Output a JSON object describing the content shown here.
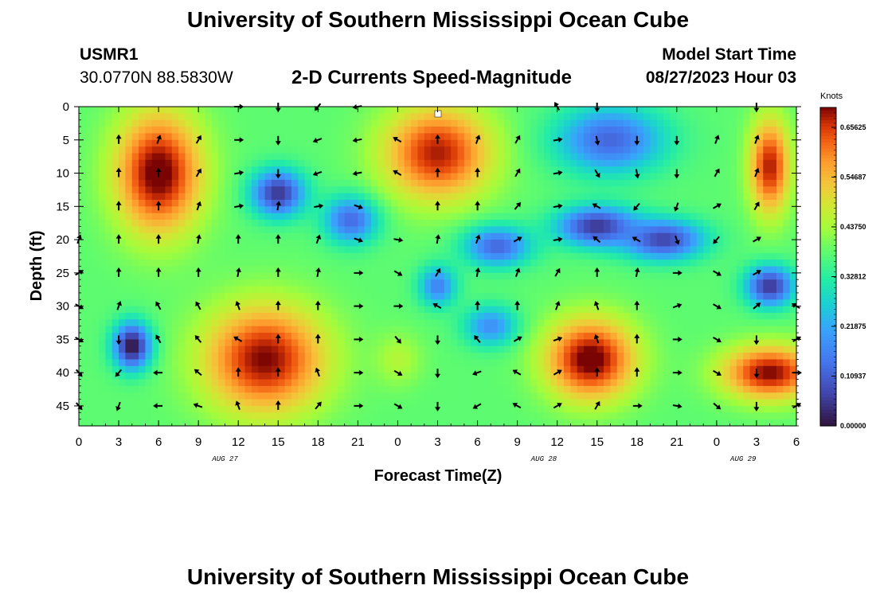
{
  "page_title": "University of Southern Mississippi Ocean Cube",
  "station": {
    "id": "USMR1",
    "coordinates": "30.0770N  88.5830W"
  },
  "subtitle": "2-D Currents Speed-Magnitude",
  "model_start": {
    "label": "Model Start Time",
    "value": "08/27/2023 Hour 03"
  },
  "bottom_title": "University of Southern Mississippi Ocean Cube",
  "chart_data": {
    "type": "heatmap",
    "title": "2-D Currents Speed-Magnitude",
    "xlabel": "Forecast Time(Z)",
    "ylabel": "Depth (ft)",
    "x_ticks": [
      "0",
      "3",
      "6",
      "9",
      "12",
      "15",
      "18",
      "21",
      "0",
      "3",
      "6",
      "9",
      "12",
      "15",
      "18",
      "21",
      "0",
      "3",
      "6"
    ],
    "x_range_hours": [
      0,
      54
    ],
    "date_labels": [
      {
        "label": "AUG 27",
        "hour": 11
      },
      {
        "label": "AUG 28",
        "hour": 35
      },
      {
        "label": "AUG 29",
        "hour": 50
      }
    ],
    "y_ticks": [
      0,
      5,
      10,
      15,
      20,
      25,
      30,
      35,
      40,
      45
    ],
    "ylim": [
      0,
      48
    ],
    "y_inverted": true,
    "colorbar": {
      "title": "Knots",
      "ticks": [
        "0.65625",
        "0.54687",
        "0.43750",
        "0.32812",
        "0.21875",
        "0.10937",
        "0.00000"
      ],
      "range": [
        0,
        0.7
      ],
      "colormap": "turbo"
    },
    "hot_spots": [
      {
        "hour": 6,
        "depth": 10,
        "value": 0.72,
        "sx": 3.2,
        "sy": 9
      },
      {
        "hour": 14,
        "depth": 38,
        "value": 0.7,
        "sx": 4.5,
        "sy": 8
      },
      {
        "hour": 4,
        "depth": 36,
        "value": 0.0,
        "sx": 1.4,
        "sy": 3.5
      },
      {
        "hour": 15,
        "depth": 13,
        "value": 0.05,
        "sx": 2.0,
        "sy": 3.5
      },
      {
        "hour": 20.5,
        "depth": 17,
        "value": 0.12,
        "sx": 2.0,
        "sy": 3.5
      },
      {
        "hour": 27,
        "depth": 7,
        "value": 0.68,
        "sx": 4.0,
        "sy": 7
      },
      {
        "hour": 24,
        "depth": 38,
        "value": 0.45,
        "sx": 1.8,
        "sy": 4
      },
      {
        "hour": 27,
        "depth": 27,
        "value": 0.16,
        "sx": 1.4,
        "sy": 3
      },
      {
        "hour": 31,
        "depth": 33,
        "value": 0.18,
        "sx": 2,
        "sy": 3
      },
      {
        "hour": 40,
        "depth": 5,
        "value": 0.12,
        "sx": 4,
        "sy": 5
      },
      {
        "hour": 39,
        "depth": 18,
        "value": 0.05,
        "sx": 3,
        "sy": 3
      },
      {
        "hour": 44,
        "depth": 20,
        "value": 0.07,
        "sx": 3,
        "sy": 3
      },
      {
        "hour": 38.5,
        "depth": 38,
        "value": 0.72,
        "sx": 3.3,
        "sy": 6
      },
      {
        "hour": 52,
        "depth": 40,
        "value": 0.7,
        "sx": 3.5,
        "sy": 4
      },
      {
        "hour": 52,
        "depth": 9,
        "value": 0.68,
        "sx": 1.5,
        "sy": 7
      },
      {
        "hour": 52,
        "depth": 27,
        "value": 0.05,
        "sx": 1.8,
        "sy": 3
      },
      {
        "hour": 31.5,
        "depth": 21,
        "value": 0.12,
        "sx": 2.5,
        "sy": 3
      }
    ],
    "base_value": 0.38,
    "vectors_note": "current direction arrows every 3 h and 5 ft (degrees clockwise from north, estimated)",
    "vector_hours": [
      0,
      3,
      6,
      9,
      12,
      15,
      18,
      21,
      24,
      27,
      30,
      33,
      36,
      39,
      42,
      45,
      48,
      51,
      54
    ],
    "vector_depths": [
      0,
      5,
      10,
      15,
      20,
      25,
      30,
      35,
      40,
      45
    ],
    "vector_directions_deg": [
      [
        null,
        null,
        null,
        null,
        90,
        180,
        220,
        260,
        null,
        null,
        null,
        null,
        330,
        180,
        null,
        null,
        null,
        180,
        null
      ],
      [
        null,
        0,
        20,
        30,
        90,
        180,
        250,
        260,
        300,
        0,
        20,
        30,
        80,
        170,
        180,
        180,
        20,
        20,
        null
      ],
      [
        null,
        0,
        0,
        30,
        80,
        180,
        250,
        260,
        300,
        0,
        0,
        30,
        80,
        150,
        170,
        180,
        30,
        20,
        null
      ],
      [
        null,
        0,
        0,
        20,
        80,
        10,
        80,
        110,
        null,
        0,
        0,
        40,
        80,
        300,
        220,
        200,
        60,
        30,
        null
      ],
      [
        20,
        0,
        0,
        10,
        0,
        0,
        20,
        110,
        100,
        10,
        20,
        60,
        80,
        310,
        300,
        160,
        220,
        60,
        null
      ],
      [
        60,
        0,
        0,
        0,
        10,
        0,
        10,
        90,
        120,
        30,
        10,
        20,
        30,
        0,
        10,
        90,
        120,
        60,
        null
      ],
      [
        120,
        20,
        330,
        330,
        340,
        0,
        0,
        90,
        90,
        300,
        0,
        0,
        20,
        340,
        0,
        70,
        120,
        50,
        300
      ],
      [
        120,
        180,
        330,
        320,
        300,
        0,
        0,
        90,
        140,
        180,
        320,
        60,
        70,
        340,
        0,
        90,
        120,
        180,
        60
      ],
      [
        140,
        220,
        270,
        310,
        0,
        0,
        340,
        90,
        120,
        180,
        250,
        300,
        60,
        0,
        0,
        90,
        120,
        180,
        90
      ],
      [
        140,
        200,
        270,
        290,
        340,
        0,
        40,
        90,
        120,
        180,
        240,
        300,
        60,
        30,
        90,
        100,
        130,
        180,
        60
      ]
    ]
  }
}
